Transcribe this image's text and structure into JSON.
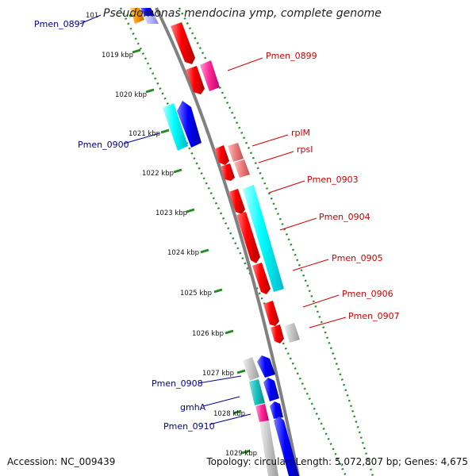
{
  "title": "Pseudomonas mendocina ymp, complete genome",
  "accession": "Accession: NC_009439",
  "summary": "Topology: circular; Length: 5,072,807 bp; Genes: 4,675",
  "ruler_labels": [
    "101",
    "1019 kbp",
    "1020 kbp",
    "1021 kbp",
    "1022 kbp",
    "1023 kbp",
    "1024 kbp",
    "1025 kbp",
    "1026 kbp",
    "1027 kbp",
    "1028 kbp",
    "1029 kbp"
  ],
  "gene_labels_left": [
    "Pmen_0897",
    "Pmen_0900",
    "Pmen_0908",
    "gmhA",
    "Pmen_0910"
  ],
  "gene_labels_right": [
    "Pmen_0899",
    "rplM",
    "rpsI",
    "Pmen_0903",
    "Pmen_0904",
    "Pmen_0905",
    "Pmen_0906",
    "Pmen_0907"
  ],
  "colors": {
    "reverse_gene": "#ff0000",
    "forward_gene": "#0000ff",
    "pink_gene": "#ff2a9a",
    "cyan_gene": "#00ffff",
    "gray_gene": "#bfbfbf",
    "orange_gene": "#ff9900",
    "label_left": "#00008b",
    "label_right": "#cc0000",
    "ruler": "#228b22",
    "backbone": "#808080"
  }
}
